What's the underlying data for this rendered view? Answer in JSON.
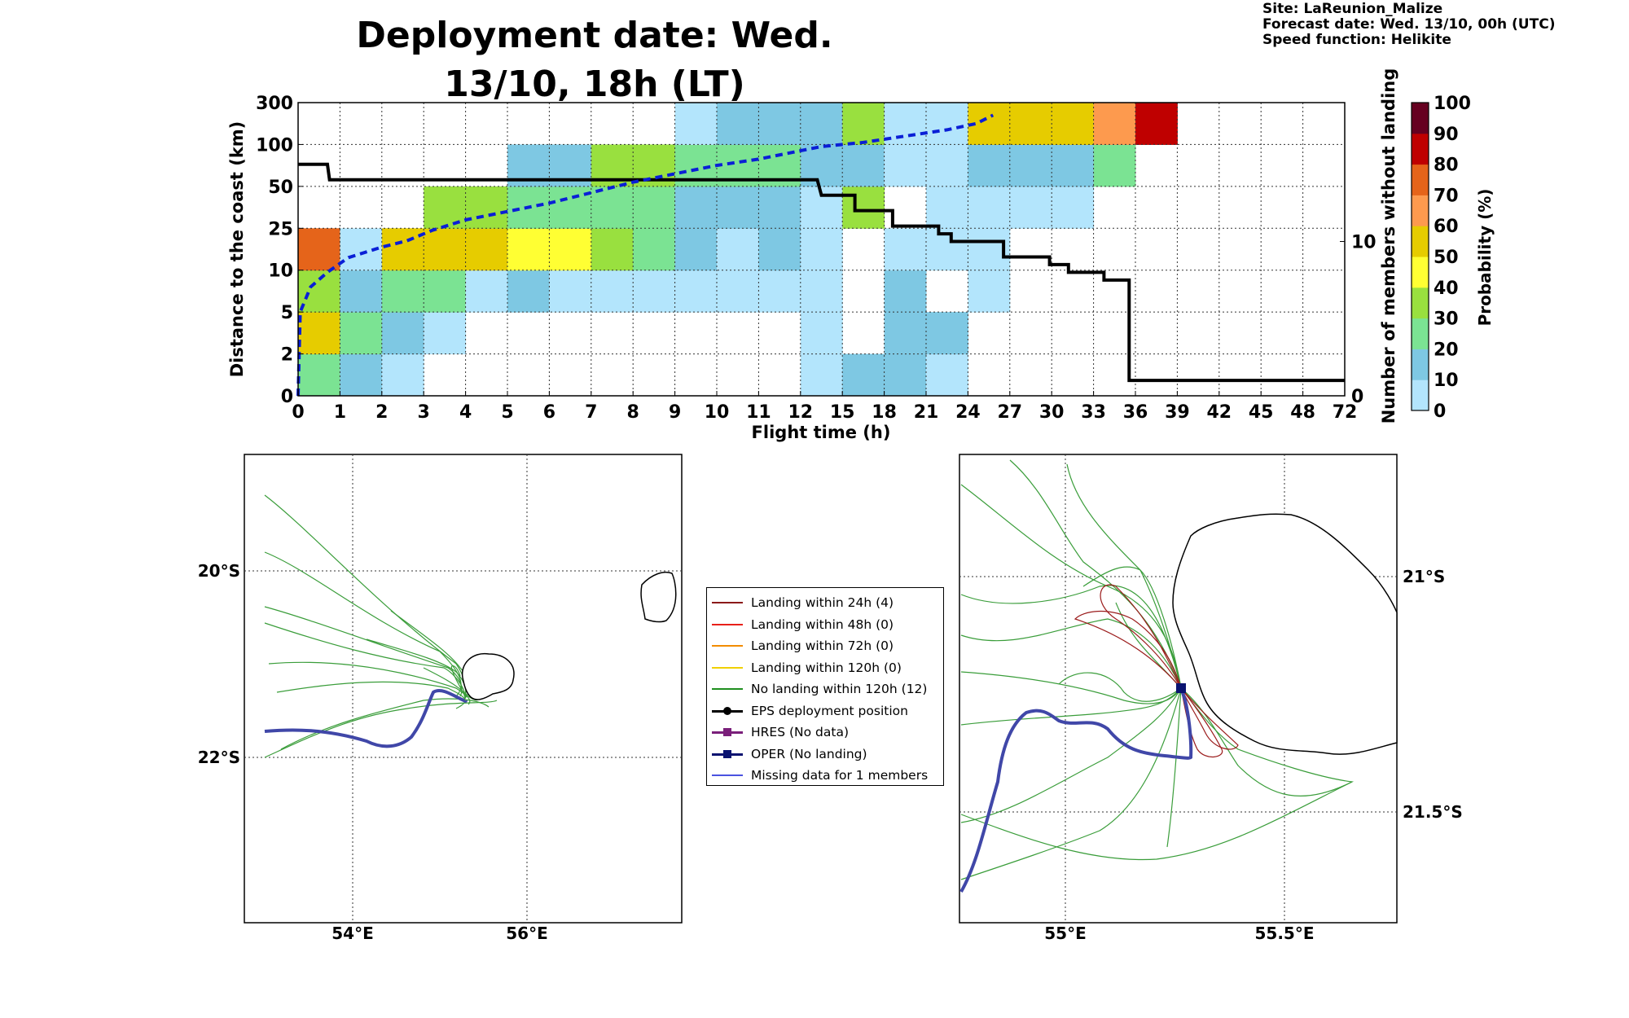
{
  "header": {
    "title": "Deployment date: Wed. 13/10, 18h (LT)",
    "site": "Site: LaReunion_Malize",
    "forecast_date": "Forecast date: Wed. 13/10, 00h (UTC)",
    "speed_function": "Speed function: Helikite"
  },
  "colors": {
    "scale": [
      "#b3e5fc",
      "#7ec8e3",
      "#7be393",
      "#99e03f",
      "#ffff33",
      "#e6cc00",
      "#fd9a4e",
      "#e5641a",
      "#bf0000",
      "#660020"
    ],
    "members_line": "#000000",
    "median_line": "#0a1fd6",
    "oper_track": "#4047a8",
    "ens_track": "#2e9b2e"
  },
  "chart_data": [
    {
      "type": "heatmap",
      "xlabel": "Flight time (h)",
      "ylabel": "Distance to the coast (km)",
      "y2label": "Number of members without landing",
      "colorbar_label": "Probability (%)",
      "x_ticks": [
        "0",
        "1",
        "2",
        "3",
        "4",
        "5",
        "6",
        "7",
        "8",
        "9",
        "10",
        "11",
        "12",
        "15",
        "18",
        "21",
        "24",
        "27",
        "30",
        "33",
        "36",
        "39",
        "42",
        "45",
        "48",
        "72"
      ],
      "y_ticks": [
        "0",
        "2",
        "5",
        "10",
        "25",
        "50",
        "100",
        "300"
      ],
      "y2_ticks": [
        "0",
        "10"
      ],
      "y2_range": [
        0,
        19
      ],
      "colorbar_ticks": [
        "0",
        "10",
        "20",
        "30",
        "40",
        "50",
        "60",
        "70",
        "80",
        "90",
        "100"
      ],
      "grid": true,
      "cells": [
        [
          2,
          5,
          3,
          7,
          -1,
          -1,
          -1,
          -1,
          -1,
          -1,
          -1,
          -1,
          -1,
          -1,
          -1,
          -1,
          -1,
          -1,
          -1,
          -1,
          -1,
          -1,
          -1,
          -1,
          -1
        ],
        [
          1,
          2,
          1,
          0,
          -1,
          -1,
          -1,
          -1,
          -1,
          -1,
          -1,
          -1,
          -1,
          -1,
          -1,
          -1,
          -1,
          -1,
          -1,
          -1,
          -1,
          -1,
          -1,
          -1,
          -1
        ],
        [
          0,
          1,
          2,
          5,
          -1,
          -1,
          -1,
          -1,
          -1,
          -1,
          -1,
          -1,
          -1,
          -1,
          -1,
          -1,
          -1,
          -1,
          -1,
          -1,
          -1,
          -1,
          -1,
          -1,
          -1
        ],
        [
          -1,
          0,
          2,
          5,
          3,
          -1,
          -1,
          -1,
          -1,
          -1,
          -1,
          -1,
          -1,
          -1,
          -1,
          -1,
          -1,
          -1,
          -1,
          -1,
          -1,
          -1,
          -1,
          -1,
          -1
        ],
        [
          -1,
          -1,
          0,
          5,
          3,
          -1,
          -1,
          -1,
          -1,
          -1,
          -1,
          -1,
          -1,
          -1,
          -1,
          -1,
          -1,
          -1,
          -1,
          -1,
          -1,
          -1,
          -1,
          -1,
          -1
        ],
        [
          -1,
          -1,
          1,
          4,
          2,
          1,
          -1,
          -1,
          -1,
          -1,
          -1,
          -1,
          -1,
          -1,
          -1,
          -1,
          -1,
          -1,
          -1,
          -1,
          -1,
          -1,
          -1,
          -1,
          -1
        ],
        [
          -1,
          -1,
          0,
          4,
          2,
          1,
          -1,
          -1,
          -1,
          -1,
          -1,
          -1,
          -1,
          -1,
          -1,
          -1,
          -1,
          -1,
          -1,
          -1,
          -1,
          -1,
          -1,
          -1,
          -1
        ],
        [
          -1,
          -1,
          0,
          3,
          2,
          3,
          -1,
          -1,
          -1,
          -1,
          -1,
          -1,
          -1,
          -1,
          -1,
          -1,
          -1,
          -1,
          -1,
          -1,
          -1,
          -1,
          -1,
          -1,
          -1
        ],
        [
          -1,
          -1,
          0,
          2,
          2,
          3,
          -1,
          -1,
          -1,
          -1,
          -1,
          -1,
          -1,
          -1,
          -1,
          -1,
          -1,
          -1,
          -1,
          -1,
          -1,
          -1,
          -1,
          -1,
          -1
        ],
        [
          -1,
          -1,
          0,
          1,
          1,
          2,
          0,
          -1,
          -1,
          -1,
          -1,
          -1,
          -1,
          -1,
          -1,
          -1,
          -1,
          -1,
          -1,
          -1,
          -1,
          -1,
          -1,
          -1,
          -1
        ],
        [
          -1,
          -1,
          0,
          0,
          1,
          2,
          1,
          -1,
          -1,
          -1,
          -1,
          -1,
          -1,
          -1,
          -1,
          -1,
          -1,
          -1,
          -1,
          -1,
          -1,
          -1,
          -1,
          -1,
          -1
        ],
        [
          -1,
          -1,
          0,
          1,
          1,
          2,
          1,
          -1,
          -1,
          -1,
          -1,
          -1,
          -1,
          -1,
          -1,
          -1,
          -1,
          -1,
          -1,
          -1,
          -1,
          -1,
          -1,
          -1,
          -1
        ],
        [
          0,
          0,
          0,
          0,
          0,
          1,
          1,
          -1,
          -1,
          -1,
          -1,
          -1,
          -1,
          -1,
          -1,
          -1,
          -1,
          -1,
          -1,
          -1,
          -1,
          -1,
          -1,
          -1,
          -1
        ],
        [
          1,
          -1,
          -1,
          -1,
          3,
          1,
          3,
          -1,
          -1,
          -1,
          -1,
          -1,
          -1,
          -1,
          -1,
          -1,
          -1,
          -1,
          -1,
          -1,
          -1,
          -1,
          -1,
          -1,
          -1
        ],
        [
          1,
          1,
          1,
          0,
          -1,
          0,
          0,
          -1,
          -1,
          -1,
          -1,
          -1,
          -1,
          -1,
          -1,
          -1,
          -1,
          -1,
          -1,
          -1,
          -1,
          -1,
          -1,
          -1,
          -1
        ],
        [
          0,
          1,
          -1,
          0,
          0,
          0,
          0,
          -1,
          -1,
          -1,
          -1,
          -1,
          -1,
          -1,
          -1,
          -1,
          -1,
          -1,
          -1,
          -1,
          -1,
          -1,
          -1,
          -1,
          -1
        ],
        [
          -1,
          -1,
          0,
          0,
          0,
          1,
          5,
          -1,
          -1,
          -1,
          -1,
          -1,
          -1,
          -1,
          -1,
          -1,
          -1,
          -1,
          -1,
          -1,
          -1,
          -1,
          -1,
          -1,
          -1
        ],
        [
          -1,
          -1,
          -1,
          -1,
          0,
          1,
          5,
          -1,
          -1,
          -1,
          -1,
          -1,
          -1,
          -1,
          -1,
          -1,
          -1,
          -1,
          -1,
          -1,
          -1,
          -1,
          -1,
          -1,
          -1
        ],
        [
          -1,
          -1,
          -1,
          -1,
          0,
          1,
          5,
          -1,
          -1,
          -1,
          -1,
          -1,
          -1,
          -1,
          -1,
          -1,
          -1,
          -1,
          -1,
          -1,
          -1,
          -1,
          -1,
          -1,
          -1
        ],
        [
          -1,
          -1,
          -1,
          -1,
          -1,
          2,
          6,
          -1,
          -1,
          -1,
          -1,
          -1,
          -1,
          -1,
          -1,
          -1,
          -1,
          -1,
          -1,
          -1,
          -1,
          -1,
          -1,
          -1,
          -1
        ],
        [
          -1,
          -1,
          -1,
          -1,
          -1,
          -1,
          8,
          -1,
          -1,
          -1,
          -1,
          -1,
          -1,
          -1,
          -1,
          -1,
          -1,
          -1,
          -1,
          -1,
          -1,
          -1,
          -1,
          -1,
          -1
        ],
        [
          -1,
          -1,
          -1,
          -1,
          -1,
          -1,
          -1,
          -1,
          -1,
          -1,
          -1,
          -1,
          -1,
          -1,
          -1,
          -1,
          -1,
          -1,
          -1,
          -1,
          -1,
          -1,
          -1,
          -1,
          -1
        ],
        [
          -1,
          -1,
          -1,
          -1,
          -1,
          -1,
          -1,
          -1,
          -1,
          -1,
          -1,
          -1,
          -1,
          -1,
          -1,
          -1,
          -1,
          -1,
          -1,
          -1,
          -1,
          -1,
          -1,
          -1,
          -1
        ],
        [
          -1,
          -1,
          -1,
          -1,
          -1,
          -1,
          -1,
          -1,
          -1,
          -1,
          -1,
          -1,
          -1,
          -1,
          -1,
          -1,
          -1,
          -1,
          -1,
          -1,
          -1,
          -1,
          -1,
          -1,
          -1
        ],
        [
          -1,
          -1,
          -1,
          -1,
          -1,
          -1,
          -1,
          -1,
          -1,
          -1,
          -1,
          -1,
          -1,
          -1,
          -1,
          -1,
          -1,
          -1,
          -1,
          -1,
          -1,
          -1,
          -1,
          -1,
          -1
        ]
      ],
      "members_step": [
        [
          0,
          15
        ],
        [
          0.7,
          15
        ],
        [
          0.75,
          14
        ],
        [
          12.4,
          14
        ],
        [
          12.5,
          13
        ],
        [
          13.3,
          13
        ],
        [
          13.3,
          12
        ],
        [
          14.2,
          12
        ],
        [
          14.2,
          11
        ],
        [
          15.3,
          11
        ],
        [
          15.3,
          10.5
        ],
        [
          15.6,
          10.5
        ],
        [
          15.6,
          10
        ],
        [
          16.85,
          10
        ],
        [
          16.85,
          9
        ],
        [
          17.95,
          9
        ],
        [
          17.95,
          8.5
        ],
        [
          18.4,
          8.5
        ],
        [
          18.4,
          8
        ],
        [
          19.25,
          8
        ],
        [
          19.25,
          7.5
        ],
        [
          19.85,
          7.5
        ],
        [
          19.85,
          1
        ],
        [
          25,
          1
        ]
      ],
      "median_curve": [
        [
          0,
          0
        ],
        [
          0.05,
          2
        ],
        [
          0.3,
          2.6
        ],
        [
          0.7,
          2.95
        ],
        [
          1.2,
          3.3
        ],
        [
          2,
          3.55
        ],
        [
          2.6,
          3.7
        ],
        [
          3.2,
          3.95
        ],
        [
          4,
          4.2
        ],
        [
          5,
          4.4
        ],
        [
          6,
          4.6
        ],
        [
          7,
          4.85
        ],
        [
          8,
          5.1
        ],
        [
          9,
          5.3
        ],
        [
          10,
          5.5
        ],
        [
          11,
          5.65
        ],
        [
          12,
          5.85
        ],
        [
          12.5,
          5.95
        ],
        [
          13.5,
          6.05
        ],
        [
          14.5,
          6.2
        ],
        [
          15.5,
          6.35
        ],
        [
          16.2,
          6.5
        ],
        [
          16.6,
          6.7
        ]
      ]
    }
  ],
  "left_map": {
    "lon_labels": [
      "54°E",
      "56°E"
    ],
    "lat_labels": [
      "20°S",
      "22°S"
    ]
  },
  "right_map": {
    "lon_labels": [
      "55°E",
      "55.5°E"
    ],
    "lat_labels": [
      "21°S",
      "21.5°S"
    ]
  },
  "legend": {
    "items": [
      {
        "label": "Landing within 24h (4)",
        "color": "#8b1a1a",
        "marker": "none"
      },
      {
        "label": "Landing within 48h (0)",
        "color": "#e8201a",
        "marker": "none"
      },
      {
        "label": "Landing within 72h (0)",
        "color": "#f28c00",
        "marker": "none"
      },
      {
        "label": "Landing within 120h (0)",
        "color": "#f0d000",
        "marker": "none"
      },
      {
        "label": "No landing within 120h (12)",
        "color": "#1f8f1f",
        "marker": "none"
      },
      {
        "label": "EPS deployment position",
        "color": "#000000",
        "marker": "circle"
      },
      {
        "label": "HRES (No data)",
        "color": "#7a1f7a",
        "marker": "square"
      },
      {
        "label": "OPER (No landing)",
        "color": "#0a1370",
        "marker": "square"
      },
      {
        "label": "Missing data for 1 members",
        "color": "#4a52e0",
        "marker": "none"
      }
    ]
  }
}
